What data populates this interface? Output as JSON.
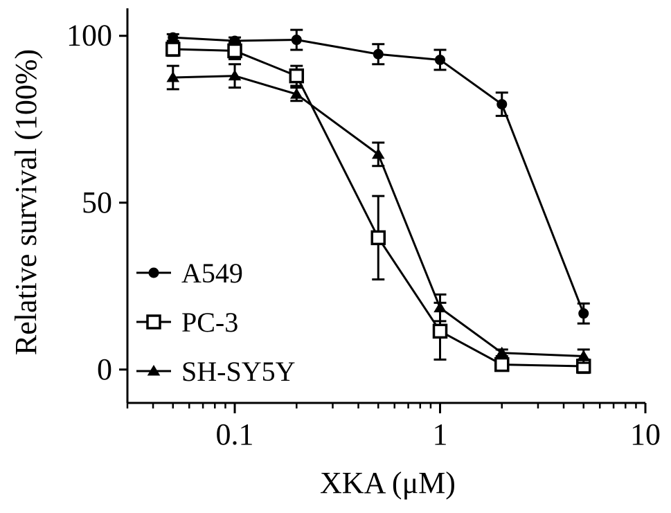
{
  "chart_data": {
    "type": "line",
    "title": "",
    "xlabel": "XKA (μM)",
    "ylabel": "Relative survival (100%)",
    "xscale": "log",
    "xlim": [
      0.03,
      10
    ],
    "ylim": [
      -10,
      107
    ],
    "x_ticks": [
      0.1,
      1,
      10
    ],
    "x_tick_labels": [
      "0.1",
      "1",
      "10"
    ],
    "y_ticks": [
      0,
      50,
      100
    ],
    "y_tick_labels": [
      "0",
      "50",
      "100"
    ],
    "grid": false,
    "legend_position": "bottom-left",
    "series": [
      {
        "name": "A549",
        "marker": "filled-circle",
        "x": [
          0.05,
          0.1,
          0.2,
          0.5,
          1,
          2,
          5
        ],
        "y": [
          99.5,
          98.5,
          98.8,
          94.5,
          92.8,
          79.5,
          16.8
        ],
        "err": [
          1.0,
          1.0,
          3.0,
          3.0,
          3.0,
          3.5,
          3.0
        ]
      },
      {
        "name": "PC-3",
        "marker": "open-square",
        "x": [
          0.05,
          0.1,
          0.2,
          0.5,
          1,
          2,
          5
        ],
        "y": [
          96.0,
          95.5,
          88.0,
          39.5,
          11.5,
          1.5,
          1.0
        ],
        "err": [
          2.0,
          2.5,
          3.0,
          12.5,
          8.5,
          1.0,
          2.0
        ]
      },
      {
        "name": "SH-SY5Y",
        "marker": "filled-triangle",
        "x": [
          0.05,
          0.1,
          0.2,
          0.5,
          1,
          2,
          5
        ],
        "y": [
          87.5,
          88.0,
          82.5,
          64.5,
          18.5,
          5.0,
          4.0
        ],
        "err": [
          3.5,
          3.5,
          2.0,
          3.5,
          4.0,
          1.0,
          2.0
        ]
      }
    ]
  }
}
